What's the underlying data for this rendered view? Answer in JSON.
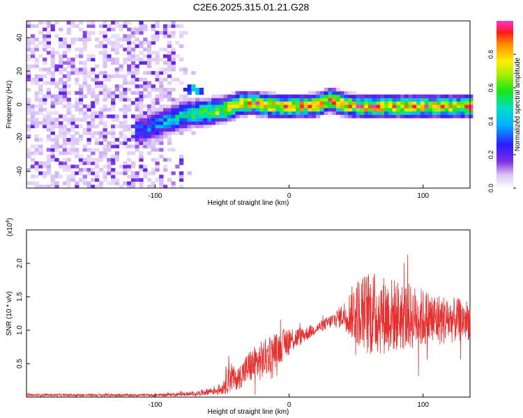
{
  "title": "C2E6.2025.315.01.21.G28",
  "chart_data": [
    {
      "type": "heatmap",
      "xlabel": "Height of straight line (km)",
      "ylabel": "Frequency (Hz)",
      "xlim": [
        -196,
        135
      ],
      "ylim": [
        -50,
        50
      ],
      "xticks": [
        -100,
        0,
        100
      ],
      "yticks": [
        -40,
        -20,
        0,
        20,
        40
      ],
      "grid": false,
      "colorbar": {
        "label": "Normalized spectral amplitude",
        "range": [
          0,
          1
        ],
        "ticks": [
          "0.0",
          "0.2",
          "0.4",
          "0.6",
          "0.8"
        ],
        "tick_values": [
          0,
          0.2,
          0.4,
          0.6,
          0.8
        ]
      },
      "ridge": {
        "x": [
          -110,
          -100,
          -90,
          -80,
          -70,
          -60,
          -50,
          -40,
          -30,
          -20,
          -10,
          0,
          10,
          20,
          30,
          40,
          50,
          60,
          80,
          100,
          120,
          135
        ],
        "freq": [
          -15,
          -12,
          -9,
          -6,
          -5,
          -4,
          -3,
          0,
          1,
          0,
          -1,
          -1,
          -1,
          0,
          3,
          0,
          -1,
          -1,
          -1,
          -1,
          -1,
          -1
        ]
      },
      "noise_region_x": [
        -196,
        -75
      ]
    },
    {
      "type": "line",
      "ylabel": "SNR (10 * v/v)",
      "xlabel": "Height of straight line (km)",
      "scale_label": "(x10",
      "scale_exp": "4",
      "scale_close": ")",
      "xlim": [
        -196,
        135
      ],
      "ylim": [
        0,
        2.5
      ],
      "xticks": [
        -100,
        0,
        100
      ],
      "yticks": [
        0.5,
        1.0,
        1.5,
        2.0
      ],
      "ytick_labels": [
        "0.5",
        "1.0",
        "1.5",
        "2.0"
      ],
      "series": [
        {
          "color": "#e53030",
          "envelope": {
            "x": [
              -196,
              -100,
              -70,
              -50,
              -45,
              -40,
              -30,
              -20,
              -10,
              0,
              10,
              20,
              30,
              40,
              50,
              60,
              80,
              100,
              120,
              135
            ],
            "mean": [
              0.03,
              0.03,
              0.05,
              0.12,
              0.35,
              0.25,
              0.45,
              0.55,
              0.7,
              0.85,
              0.92,
              1.02,
              1.12,
              1.22,
              1.28,
              1.25,
              1.22,
              1.18,
              1.15,
              1.15
            ],
            "spread": [
              0.02,
              0.02,
              0.03,
              0.08,
              0.3,
              0.15,
              0.25,
              0.3,
              0.25,
              0.22,
              0.12,
              0.08,
              0.1,
              0.18,
              0.5,
              0.65,
              0.55,
              0.45,
              0.35,
              0.3
            ]
          }
        }
      ]
    }
  ]
}
